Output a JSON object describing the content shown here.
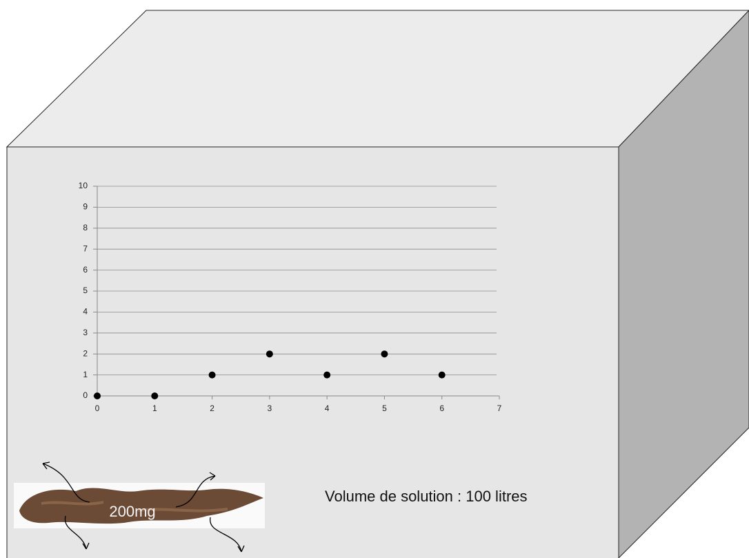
{
  "chart_data": {
    "type": "scatter",
    "x": [
      0,
      1,
      2,
      3,
      4,
      5,
      6
    ],
    "y": [
      0,
      0,
      1,
      2,
      1,
      2,
      1
    ],
    "color": "#000000",
    "xlim": [
      0,
      7
    ],
    "xticks": [
      0,
      1,
      2,
      3,
      4,
      5,
      6,
      7
    ],
    "ylim": [
      0,
      10
    ],
    "yticks": [
      0,
      1,
      2,
      3,
      4,
      5,
      6,
      7,
      8,
      9,
      10
    ],
    "grid": true
  },
  "labels": {
    "mass": "200mg",
    "volume": "Volume de solution : 100 litres"
  }
}
